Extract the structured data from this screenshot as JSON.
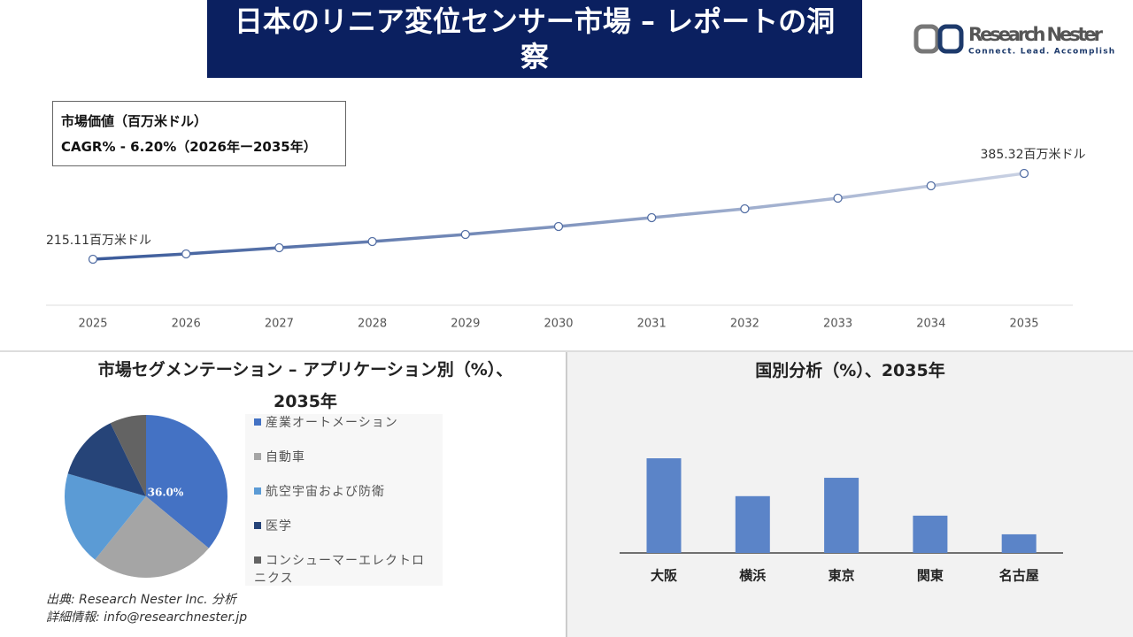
{
  "header": {
    "title": "日本のリニア変位センサー市場 – レポートの洞察"
  },
  "logo": {
    "name": "Research Nester",
    "tagline": "Connect. Lead. Accomplish"
  },
  "annotation": {
    "line1": "市場価値（百万米ドル）",
    "line2": "CAGR% - 6.20%（2026年ー2035年）"
  },
  "chart_data": [
    {
      "type": "line",
      "x": [
        2025,
        2026,
        2027,
        2028,
        2029,
        2030,
        2031,
        2032,
        2033,
        2034,
        2035
      ],
      "values": [
        215.11,
        225.6,
        237.9,
        250.2,
        264.2,
        280.0,
        297.6,
        315.1,
        336.2,
        360.7,
        385.32
      ],
      "value_labels": [
        "215.11百万米ドル",
        null,
        null,
        null,
        null,
        null,
        null,
        null,
        null,
        null,
        "385.32百万米ドル"
      ],
      "color": "#3a5a9a"
    },
    {
      "type": "pie",
      "title": "市場セグメンテーション – アプリケーション別（%）、2035年",
      "categories": [
        "産業オートメーション",
        "自動車",
        "航空宇宙および防衛",
        "医学",
        "コンシューマーエレクトロニクス"
      ],
      "values": [
        36,
        24.8,
        18.7,
        13.3,
        7.2
      ],
      "value_labels": [
        "36.0%",
        null,
        null,
        null,
        null
      ],
      "colors": [
        "#4472c4",
        "#a5a5a5",
        "#5b9bd5",
        "#264478",
        "#636363"
      ]
    },
    {
      "type": "bar",
      "title": "国別分析（%）、2035年",
      "categories": [
        "大阪",
        "横浜",
        "東京",
        "関東",
        "名古屋"
      ],
      "values": [
        33.5,
        20.1,
        26.6,
        13.2,
        6.6
      ],
      "color": "#5b84c8"
    }
  ],
  "footer": {
    "source": "出典: Research Nester Inc. 分析",
    "info": "詳細情報: info@researchnester.jp"
  }
}
